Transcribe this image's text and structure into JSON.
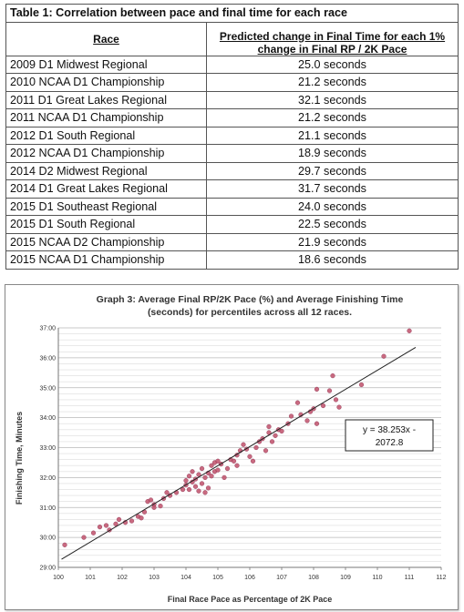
{
  "table": {
    "caption": "Table 1: Correlation between pace and final time for each race",
    "col_race": "Race",
    "col_pred_line1": "Predicted change in Final Time for each 1%",
    "col_pred_line2": "change in Final RP / 2K Pace",
    "rows": [
      {
        "race": "2009 D1 Midwest Regional",
        "value": "25.0 seconds"
      },
      {
        "race": "2010 NCAA D1 Championship",
        "value": "21.2 seconds"
      },
      {
        "race": "2011 D1 Great Lakes Regional",
        "value": "32.1 seconds"
      },
      {
        "race": "2011 NCAA D1 Championship",
        "value": "21.2 seconds"
      },
      {
        "race": "2012 D1 South Regional",
        "value": "21.1 seconds"
      },
      {
        "race": "2012 NCAA D1 Championship",
        "value": "18.9 seconds"
      },
      {
        "race": "2014 D2 Midwest Regional",
        "value": "29.7 seconds"
      },
      {
        "race": "2014 D1 Great Lakes Regional",
        "value": "31.7 seconds"
      },
      {
        "race": "2015 D1 Southeast Regional",
        "value": "24.0 seconds"
      },
      {
        "race": "2015 D1 South Regional",
        "value": "22.5 seconds"
      },
      {
        "race": "2015 NCAA D2 Championship",
        "value": "21.9 seconds"
      },
      {
        "race": "2015 NCAA D1 Championship",
        "value": "18.6 seconds"
      }
    ]
  },
  "chart_data": {
    "type": "scatter",
    "title_line1": "Graph 3: Average Final RP/2K Pace (%) and Average Finishing Time",
    "title_line2": "(seconds)  for percentiles across all 12 races.",
    "xlabel": "Final Race Pace as Percentage of 2K Pace",
    "ylabel": "Finishing Time, Minutes",
    "xlim": [
      100,
      112
    ],
    "ylim": [
      29,
      37
    ],
    "x_ticks": [
      "100",
      "101",
      "102",
      "103",
      "104",
      "105",
      "106",
      "107",
      "108",
      "109",
      "110",
      "111",
      "112"
    ],
    "y_ticks": [
      "29:00",
      "30:00",
      "31:00",
      "32:00",
      "33:00",
      "34:00",
      "35:00",
      "36:00",
      "37:00"
    ],
    "grid": true,
    "trendline_label_line1": "y = 38.253x -",
    "trendline_label_line2": "2072.8",
    "point_color": "#c0506a",
    "line_color": "#222222",
    "points": [
      [
        100.2,
        29.75
      ],
      [
        100.8,
        30.0
      ],
      [
        101.1,
        30.15
      ],
      [
        101.3,
        30.35
      ],
      [
        101.5,
        30.4
      ],
      [
        101.6,
        30.25
      ],
      [
        101.8,
        30.45
      ],
      [
        101.9,
        30.6
      ],
      [
        102.1,
        30.5
      ],
      [
        102.3,
        30.55
      ],
      [
        102.5,
        30.7
      ],
      [
        102.6,
        30.65
      ],
      [
        102.7,
        30.85
      ],
      [
        102.8,
        31.2
      ],
      [
        102.9,
        31.25
      ],
      [
        103.0,
        31.1
      ],
      [
        103.0,
        31.0
      ],
      [
        103.2,
        31.05
      ],
      [
        103.3,
        31.3
      ],
      [
        103.4,
        31.5
      ],
      [
        103.5,
        31.4
      ],
      [
        103.7,
        31.5
      ],
      [
        103.9,
        31.6
      ],
      [
        104.0,
        31.9
      ],
      [
        104.0,
        31.75
      ],
      [
        104.1,
        32.05
      ],
      [
        104.1,
        31.6
      ],
      [
        104.2,
        31.85
      ],
      [
        104.2,
        32.2
      ],
      [
        104.3,
        31.95
      ],
      [
        104.3,
        31.7
      ],
      [
        104.4,
        32.1
      ],
      [
        104.4,
        31.55
      ],
      [
        104.5,
        32.3
      ],
      [
        104.5,
        31.8
      ],
      [
        104.6,
        32.0
      ],
      [
        104.6,
        31.5
      ],
      [
        104.7,
        32.15
      ],
      [
        104.7,
        31.65
      ],
      [
        104.8,
        32.4
      ],
      [
        104.8,
        32.05
      ],
      [
        104.9,
        32.5
      ],
      [
        104.9,
        32.2
      ],
      [
        105.0,
        32.55
      ],
      [
        105.0,
        32.25
      ],
      [
        105.1,
        32.45
      ],
      [
        105.2,
        32.0
      ],
      [
        105.3,
        32.3
      ],
      [
        105.4,
        32.6
      ],
      [
        105.5,
        32.55
      ],
      [
        105.6,
        32.4
      ],
      [
        105.6,
        32.75
      ],
      [
        105.7,
        32.9
      ],
      [
        105.8,
        33.1
      ],
      [
        105.9,
        32.95
      ],
      [
        106.0,
        32.7
      ],
      [
        106.1,
        32.55
      ],
      [
        106.2,
        33.0
      ],
      [
        106.3,
        33.2
      ],
      [
        106.4,
        33.3
      ],
      [
        106.5,
        32.9
      ],
      [
        106.6,
        33.5
      ],
      [
        106.6,
        33.7
      ],
      [
        106.7,
        33.2
      ],
      [
        106.8,
        33.4
      ],
      [
        106.9,
        33.6
      ],
      [
        107.0,
        33.55
      ],
      [
        107.2,
        33.8
      ],
      [
        107.3,
        34.05
      ],
      [
        107.5,
        34.5
      ],
      [
        107.6,
        34.1
      ],
      [
        107.8,
        33.9
      ],
      [
        107.9,
        34.2
      ],
      [
        108.0,
        34.3
      ],
      [
        108.1,
        33.8
      ],
      [
        108.1,
        34.95
      ],
      [
        108.3,
        34.4
      ],
      [
        108.5,
        34.9
      ],
      [
        108.6,
        35.4
      ],
      [
        108.7,
        34.6
      ],
      [
        108.8,
        34.35
      ],
      [
        109.5,
        35.1
      ],
      [
        110.2,
        36.05
      ],
      [
        111.0,
        36.9
      ]
    ]
  }
}
